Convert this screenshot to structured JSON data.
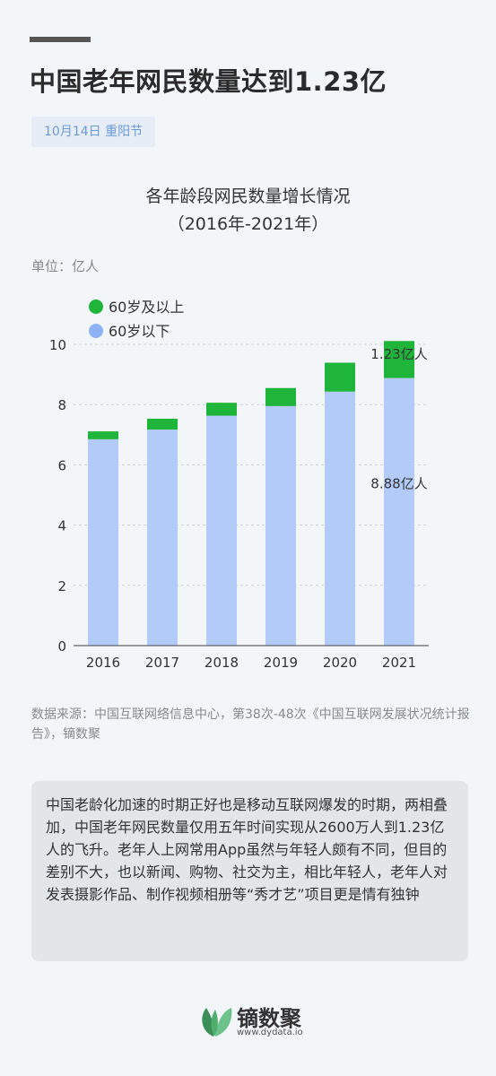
{
  "headline": "中国老年网民数量达到1.23亿",
  "badge": "10月14日 重阳节",
  "chart_title_line1": "各年龄段网民数量增长情况",
  "chart_title_line2": "（2016年-2021年）",
  "unit": "单位：亿人",
  "source": "数据来源：中国互联网络信息中心，第38次-48次《中国互联网发展状况统计报告》，镝数聚",
  "summary": "中国老龄化加速的时期正好也是移动互联网爆发的时期，两相叠加，中国老年网民数量仅用五年时间实现从2600万人到1.23亿人的飞升。老年人上网常用App虽然与年轻人颇有不同，但目的差别不大，也以新闻、购物、社交为主，相比年轻人，老年人对发表摄影作品、制作视频相册等“秀才艺”项目更是情有独钟",
  "logo": {
    "name": "镝数聚",
    "url": "www.dydata.io"
  },
  "colors": {
    "green": "#1fb43a",
    "blue": "#b3cbf9",
    "legend_blue": "#8fb2f7"
  },
  "chart_data": {
    "type": "bar",
    "stacked": true,
    "categories": [
      "2016",
      "2017",
      "2018",
      "2019",
      "2020",
      "2021"
    ],
    "series": [
      {
        "name": "60岁以下",
        "values": [
          6.85,
          7.17,
          7.63,
          7.95,
          8.43,
          8.88
        ]
      },
      {
        "name": "60岁及以上",
        "values": [
          0.26,
          0.36,
          0.43,
          0.6,
          0.96,
          1.23
        ]
      }
    ],
    "ylim": [
      0,
      10
    ],
    "yticks": [
      0,
      2,
      4,
      6,
      8,
      10
    ],
    "grid": true,
    "legend": "top-left",
    "annotations": [
      {
        "text": "1.23亿人",
        "category": "2021",
        "value": 9.7
      },
      {
        "text": "8.88亿人",
        "category": "2021",
        "value": 5.4
      }
    ]
  }
}
